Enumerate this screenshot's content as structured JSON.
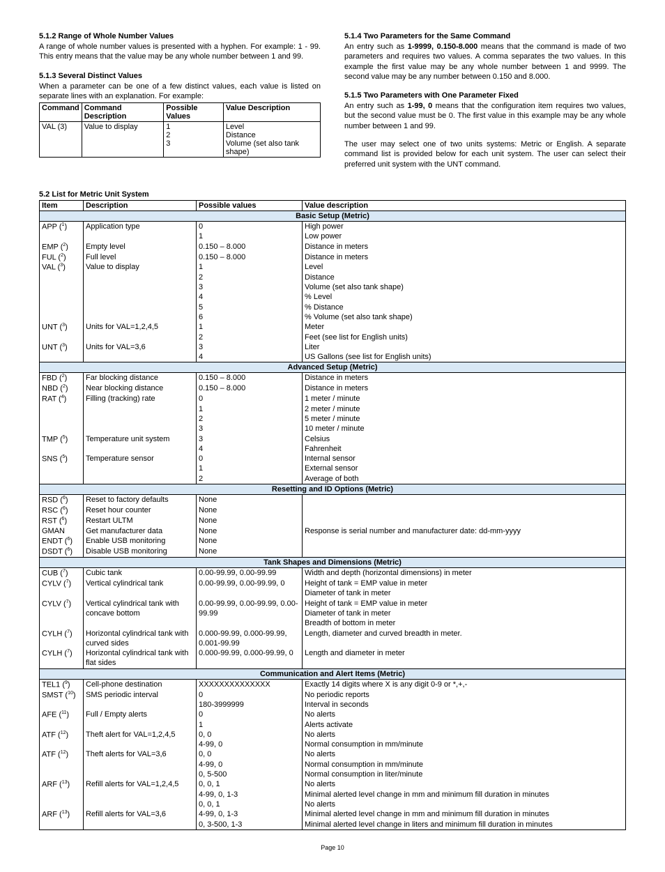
{
  "left": {
    "h1": "5.1.2 Range of Whole Number Values",
    "p1": "A range of whole number values is presented with a hyphen. For example: 1 - 99. This entry means that the value may be any whole number between 1 and 99.",
    "h2": "5.1.3 Several Distinct Values",
    "p2": "When a parameter can be one of a few distinct values, each value is listed on separate lines with an explanation. For example:",
    "table": {
      "headers": [
        "Command",
        "Command Description",
        "Possible Values",
        "Value Description"
      ],
      "row": {
        "cmd": "VAL (3)",
        "desc": "Value to display",
        "vals": "1\n2\n3",
        "vdesc": "Level\nDistance\nVolume (set also tank shape)"
      }
    }
  },
  "right": {
    "h1": "5.1.4 Two Parameters for the Same Command",
    "p1a": "An entry such as ",
    "p1b": "1-9999, 0.150-8.000",
    "p1c": " means that the command is made of two parameters and requires two values. A comma separates the two values. In this example the first value may be any whole number between 1 and 9999. The second value may be any number between 0.150 and 8.000.",
    "h2": "5.1.5 Two Parameters with One Parameter Fixed",
    "p2a": "An entry such as ",
    "p2b": "1-99, 0",
    "p2c": " means that the configuration item requires two values, but the second value must be 0. The first value in this example may be any whole number between 1 and 99.",
    "p3": "The user may select one of two units systems: Metric or English. A separate command list is provided below for each unit system. The user can select their preferred unit system with the UNT command."
  },
  "listHeading": "5.2 List for Metric Unit System",
  "headers": [
    "Item",
    "Description",
    "Possible values",
    "Value description"
  ],
  "sections": [
    {
      "title": "Basic Setup (Metric)",
      "rows": [
        {
          "item": "APP (",
          "sup": "1",
          "desc": "Application type",
          "pv": "0\n1",
          "vd": "High power\nLow power"
        },
        {
          "item": "EMP (",
          "sup": "2",
          "desc": "Empty level",
          "pv": "0.150 – 8.000",
          "vd": "Distance in meters"
        },
        {
          "item": "FUL (",
          "sup": "2",
          "desc": "Full level",
          "pv": "0.150 – 8.000",
          "vd": "Distance in meters"
        },
        {
          "item": "VAL (",
          "sup": "3",
          "desc": "Value to display",
          "pv": "1\n2\n3\n4\n5\n6",
          "vd": "Level\nDistance\nVolume (set also tank shape)\n% Level\n% Distance\n% Volume (set also tank shape)"
        },
        {
          "item": "UNT (",
          "sup": "3",
          "desc": "Units for VAL=1,2,4,5",
          "pv": "1\n2",
          "vd": "Meter\nFeet  (see list for English units)"
        },
        {
          "item": "UNT (",
          "sup": "3",
          "desc": "Units for VAL=3,6",
          "pv": "3\n4",
          "vd": "Liter\nUS Gallons (see list for English units)"
        }
      ]
    },
    {
      "title": "Advanced Setup (Metric)",
      "rows": [
        {
          "item": "FBD (",
          "sup": "2",
          "desc": "Far blocking distance",
          "pv": "0.150 – 8.000",
          "vd": "Distance in meters"
        },
        {
          "item": "NBD (",
          "sup": "2",
          "desc": "Near blocking distance",
          "pv": "0.150 – 8.000",
          "vd": "Distance in meters"
        },
        {
          "item": "RAT (",
          "sup": "4",
          "desc": "Filling (tracking) rate",
          "pv": "0\n1\n2\n3",
          "vd": "1 meter / minute\n2 meter / minute\n5 meter / minute\n10 meter / minute"
        },
        {
          "item": "TMP (",
          "sup": "5",
          "desc": "Temperature unit system",
          "pv": "3\n4",
          "vd": "Celsius\nFahrenheit"
        },
        {
          "item": "SNS (",
          "sup": "5",
          "desc": "Temperature sensor",
          "pv": "0\n1\n2",
          "vd": "Internal sensor\nExternal sensor\nAverage of both"
        }
      ]
    },
    {
      "title": "Resetting and ID Options (Metric)",
      "rows": [
        {
          "item": "RSD (",
          "sup": "6",
          "desc": "Reset to factory defaults",
          "pv": "None",
          "vd": ""
        },
        {
          "item": "RSC (",
          "sup": "6",
          "desc": "Reset hour counter",
          "pv": "None",
          "vd": ""
        },
        {
          "item": "RST (",
          "sup": "6",
          "desc": "Restart ULTM",
          "pv": "None",
          "vd": ""
        },
        {
          "item": "GMAN",
          "sup": "",
          "desc": "Get manufacturer data",
          "pv": "None",
          "vd": "Response is serial number and manufacturer date: dd-mm-yyyy"
        },
        {
          "item": "ENDT (",
          "sup": "6",
          "desc": "Enable USB monitoring",
          "pv": "None",
          "vd": ""
        },
        {
          "item": "DSDT (",
          "sup": "6",
          "desc": "Disable USB monitoring",
          "pv": "None",
          "vd": ""
        }
      ]
    },
    {
      "title": "Tank Shapes and Dimensions (Metric)",
      "rows": [
        {
          "item": "CUB (",
          "sup": "7",
          "desc": "Cubic tank",
          "pv": "0.00-99.99, 0.00-99.99",
          "vd": "Width and depth (horizontal dimensions) in meter"
        },
        {
          "item": "CYLV (",
          "sup": "7",
          "desc": "Vertical cylindrical tank",
          "pv": "0.00-99.99, 0.00-99.99, 0",
          "vd": "Height of tank = EMP value in meter\nDiameter of tank in meter"
        },
        {
          "item": "CYLV (",
          "sup": "7",
          "desc": "Vertical cylindrical tank with concave bottom",
          "pv": "0.00-99.99, 0.00-99.99, 0.00-99.99",
          "vd": "Height of tank = EMP value in meter\nDiameter of tank in meter\nBreadth of bottom in meter"
        },
        {
          "item": "CYLH (",
          "sup": "7",
          "desc": "Horizontal cylindrical tank with curved sides",
          "pv": "0.000-99.99, 0.000-99.99, 0.001-99.99",
          "vd": "Length, diameter and curved breadth in meter."
        },
        {
          "item": "CYLH (",
          "sup": "7",
          "desc": "Horizontal cylindrical tank with flat sides",
          "pv": "0.000-99.99, 0.000-99.99, 0",
          "vd": "Length and diameter in meter"
        }
      ]
    },
    {
      "title": "Communication and Alert Items (Metric)",
      "rows": [
        {
          "item": "TEL1 (",
          "sup": "9",
          "desc": "Cell-phone destination",
          "pv": "XXXXXXXXXXXXXX",
          "vd": "Exactly 14 digits where X is any digit 0-9 or *,+,-"
        },
        {
          "item": "SMST (",
          "sup": "10",
          "desc": "SMS periodic interval",
          "pv": "0\n180-3999999",
          "vd": "No periodic reports\nInterval in seconds"
        },
        {
          "item": "AFE (",
          "sup": "11",
          "desc": "Full / Empty alerts",
          "pv": "0\n1",
          "vd": "No alerts\nAlerts activate"
        },
        {
          "item": "ATF (",
          "sup": "12",
          "desc": "Theft alert for VAL=1,2,4,5",
          "pv": "0, 0\n4-99, 0",
          "vd": "No alerts\nNormal consumption in mm/minute"
        },
        {
          "item": "ATF (",
          "sup": "12",
          "desc": "Theft alerts for VAL=3,6",
          "pv": "0, 0\n4-99, 0\n0, 5-500",
          "vd": "No alerts\nNormal consumption in mm/minute\nNormal consumption in liter/minute"
        },
        {
          "item": "ARF (",
          "sup": "13",
          "desc": "Refill alerts for VAL=1,2,4,5",
          "pv": "0, 0, 1\n4-99, 0, 1-3\n0, 0, 1",
          "vd": "No alerts\nMinimal alerted level change in mm and minimum fill duration in minutes\nNo alerts"
        },
        {
          "item": "ARF (",
          "sup": "13",
          "desc": "Refill alerts for VAL=3,6",
          "pv": "4-99, 0, 1-3\n0, 3-500, 1-3",
          "vd": "Minimal alerted level change in mm and minimum fill duration in minutes\nMinimal alerted level change in liters and minimum fill duration in minutes"
        }
      ]
    }
  ],
  "footer": "Page 10"
}
